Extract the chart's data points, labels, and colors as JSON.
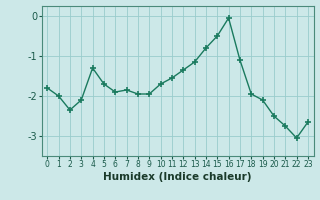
{
  "x": [
    0,
    1,
    2,
    3,
    4,
    5,
    6,
    7,
    8,
    9,
    10,
    11,
    12,
    13,
    14,
    15,
    16,
    17,
    18,
    19,
    20,
    21,
    22,
    23
  ],
  "y": [
    -1.8,
    -2.0,
    -2.35,
    -2.1,
    -1.3,
    -1.7,
    -1.9,
    -1.85,
    -1.95,
    -1.95,
    -1.7,
    -1.55,
    -1.35,
    -1.15,
    -0.8,
    -0.5,
    -0.05,
    -1.1,
    -1.95,
    -2.1,
    -2.5,
    -2.75,
    -3.05,
    -2.65
  ],
  "line_color": "#1a7a5e",
  "marker": "+",
  "marker_size": 4,
  "marker_linewidth": 1.2,
  "line_width": 1.0,
  "bg_color": "#cce8e8",
  "grid_color": "#99cccc",
  "xlabel": "Humidex (Indice chaleur)",
  "ylabel": "",
  "ylim": [
    -3.5,
    0.25
  ],
  "xlim": [
    -0.5,
    23.5
  ],
  "yticks": [
    0,
    -1,
    -2,
    -3
  ],
  "ytick_labels": [
    "0",
    "-1",
    "-2",
    "-3"
  ],
  "xtick_labels": [
    "0",
    "1",
    "2",
    "3",
    "4",
    "5",
    "6",
    "7",
    "8",
    "9",
    "10",
    "11",
    "12",
    "13",
    "14",
    "15",
    "16",
    "17",
    "18",
    "19",
    "20",
    "21",
    "22",
    "23"
  ],
  "tick_color": "#1a5a4a",
  "spine_color": "#4a8a7a",
  "xlabel_fontsize": 7.5,
  "xlabel_color": "#1a3a2a",
  "ytick_fontsize": 7,
  "xtick_fontsize": 5.5
}
